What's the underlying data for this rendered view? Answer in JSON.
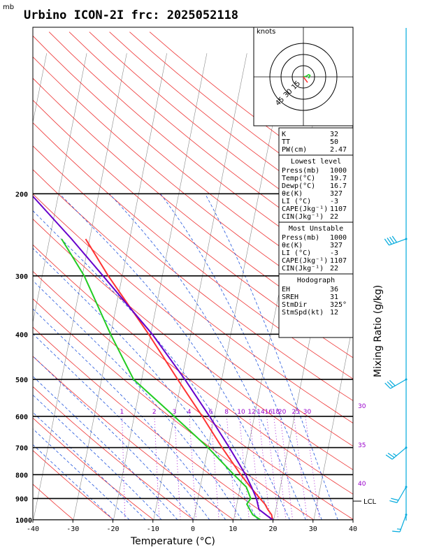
{
  "header": {
    "unit": "mb",
    "title": "Urbino ICON-2I frc: 2025052118"
  },
  "hodograph": {
    "unit_label": "knots",
    "ring_labels": [
      "15",
      "30",
      "45"
    ],
    "ring_values": [
      15,
      30,
      45
    ]
  },
  "indices": {
    "top": [
      {
        "k": "K",
        "v": "32"
      },
      {
        "k": "TT",
        "v": "50"
      },
      {
        "k": "PW(cm)",
        "v": "2.47"
      }
    ],
    "sections": [
      {
        "title": "Lowest level",
        "rows": [
          {
            "k": "Press(mb)",
            "v": "1000"
          },
          {
            "k": "Temp(°C)",
            "v": "19.7"
          },
          {
            "k": "Dewp(°C)",
            "v": "16.7"
          },
          {
            "k": "θε(K)",
            "v": "327"
          },
          {
            "k": "LI (°C)",
            "v": "-3"
          },
          {
            "k": "CAPE(Jkg⁻¹)",
            "v": "1107"
          },
          {
            "k": "CIN(Jkg⁻¹)",
            "v": "22"
          }
        ]
      },
      {
        "title": "Most Unstable",
        "rows": [
          {
            "k": "Press(mb)",
            "v": "1000"
          },
          {
            "k": "θε(K)",
            "v": "327"
          },
          {
            "k": "LI (°C)",
            "v": "-3"
          },
          {
            "k": "CAPE(Jkg⁻¹)",
            "v": "1107"
          },
          {
            "k": "CIN(Jkg⁻¹)",
            "v": "22"
          }
        ]
      },
      {
        "title": "Hodograph",
        "rows": [
          {
            "k": "EH",
            "v": "36"
          },
          {
            "k": "SREH",
            "v": "31"
          },
          {
            "k": "StmDir",
            "v": "325°"
          },
          {
            "k": "StmSpd(kt)",
            "v": "12"
          }
        ]
      }
    ]
  },
  "colors": {
    "temperature": "#ff3333",
    "dewpoint": "#22cc22",
    "parcel": "#6600cc",
    "dry_adiabat": "#ee3333",
    "moist_adiabat": "#2255dd",
    "mixing_ratio": "#9900cc",
    "wind": "#00aadd"
  },
  "chart_data": {
    "type": "line",
    "xlabel": "Temperature (°C)",
    "right_label": "Mixing Ratio (g/kg)",
    "xlim": [
      -40,
      40
    ],
    "ylim_pressure": [
      1000,
      100
    ],
    "x_ticks": [
      -40,
      -30,
      -20,
      -10,
      0,
      10,
      20,
      30,
      40
    ],
    "pressure_ticks": [
      1000,
      900,
      800,
      700,
      600,
      500,
      400,
      300,
      200
    ],
    "mixing_ratio_labels": [
      "1",
      "2",
      "3",
      "4",
      "6",
      "8",
      "10",
      "12",
      "14",
      "16",
      "18",
      "20",
      "25",
      "30"
    ],
    "mixing_ratio_values": [
      1,
      2,
      3,
      4,
      6,
      8,
      10,
      12,
      14,
      16,
      18,
      20,
      25,
      30
    ],
    "right_edge_labels": [
      "30",
      "35",
      "40"
    ],
    "lcl_label": "LCL",
    "lcl_pressure": 950,
    "series": [
      {
        "id": "temperature",
        "p": [
          1000,
          975,
          950,
          925,
          900,
          850,
          800,
          700,
          600,
          500,
          400,
          300,
          250
        ],
        "t": [
          19.7,
          19.2,
          18,
          17,
          15.5,
          12.5,
          9.5,
          3.5,
          -3,
          -11,
          -20.5,
          -33.5,
          -41
        ]
      },
      {
        "id": "dewpoint",
        "p": [
          1000,
          975,
          950,
          925,
          900,
          850,
          800,
          700,
          600,
          500,
          400,
          300,
          250
        ],
        "t": [
          16.7,
          14.5,
          13.5,
          12.5,
          13.2,
          11.5,
          7.8,
          0,
          -10,
          -22,
          -30,
          -39.5,
          -47
        ]
      },
      {
        "id": "parcel",
        "p": [
          1000,
          950,
          900,
          850,
          800,
          700,
          600,
          500,
          400,
          300,
          250,
          200,
          150,
          125,
          110
        ],
        "t": [
          19.7,
          15.8,
          14.6,
          12.8,
          10.7,
          5.3,
          -1.2,
          -9.2,
          -19.6,
          -34.8,
          -44.5,
          -57,
          -72,
          -81,
          -88
        ]
      }
    ],
    "wind_barbs": [
      {
        "p": 975,
        "dir": 200,
        "spd_kt": 15
      },
      {
        "p": 850,
        "dir": 210,
        "spd_kt": 20
      },
      {
        "p": 700,
        "dir": 230,
        "spd_kt": 25
      },
      {
        "p": 500,
        "dir": 240,
        "spd_kt": 30
      },
      {
        "p": 250,
        "dir": 250,
        "spd_kt": 40
      }
    ],
    "hodograph_points": [
      {
        "u": 0,
        "v": 0
      },
      {
        "u": 4,
        "v": 1
      },
      {
        "u": 7,
        "v": 3
      },
      {
        "u": 9,
        "v": 2
      },
      {
        "u": 7,
        "v": -2
      }
    ]
  }
}
